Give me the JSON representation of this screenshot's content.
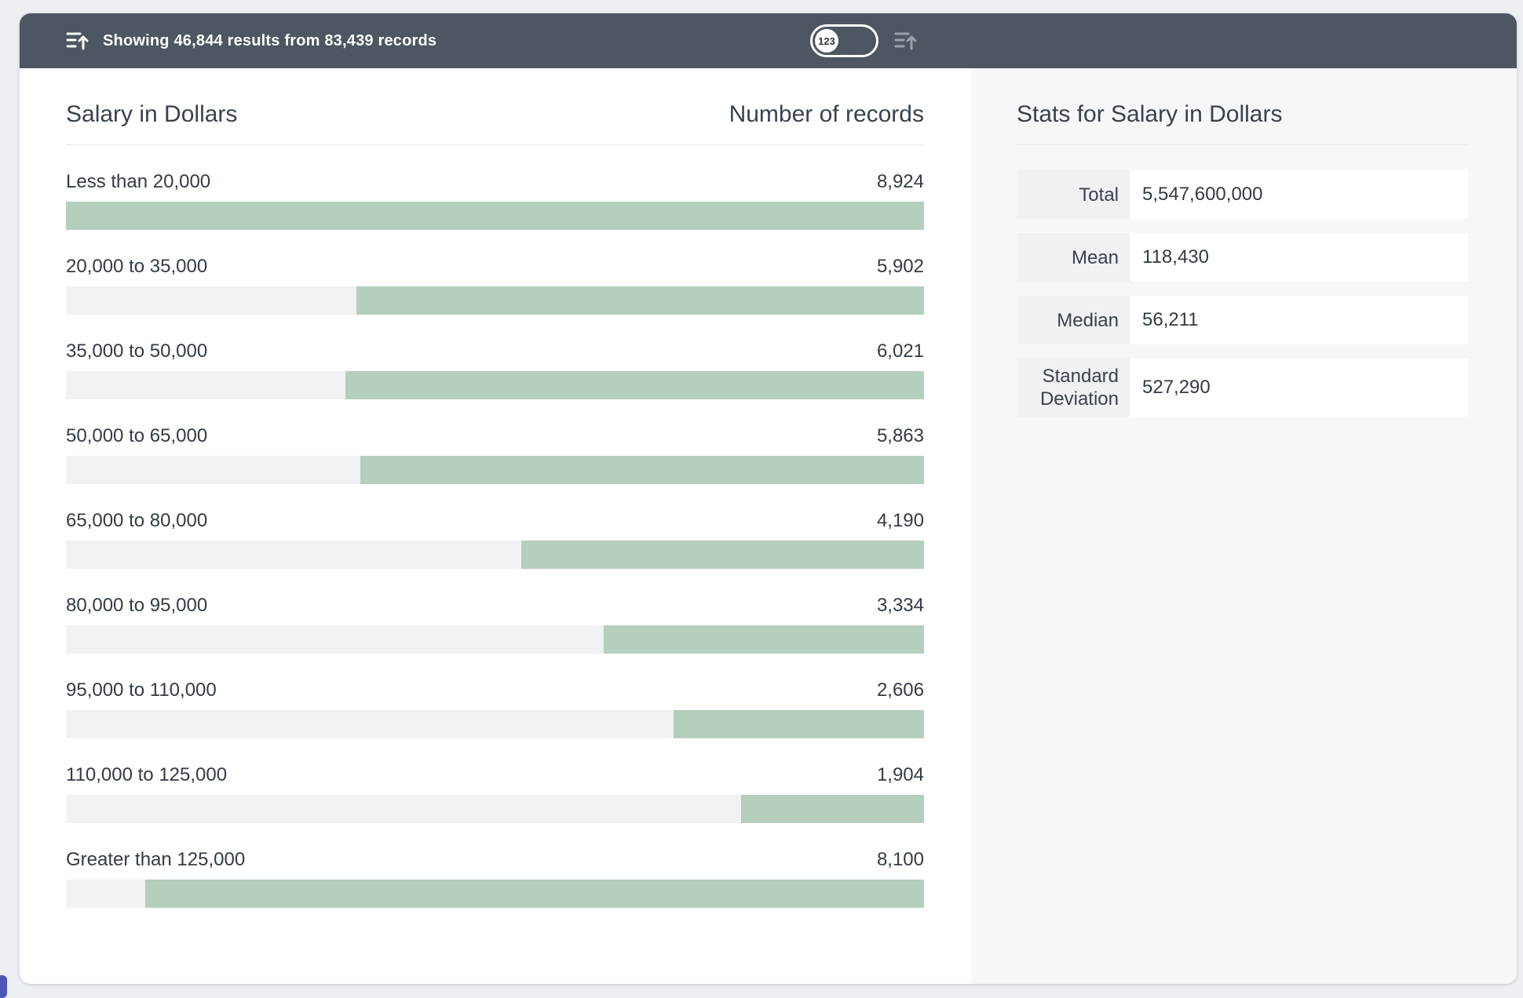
{
  "header_bar": {
    "status_text": "Showing 46,844 results from 83,439 records",
    "toggle_label": "123"
  },
  "chart": {
    "title": "Salary in Dollars",
    "value_header": "Number of records",
    "max": 8924,
    "rows": [
      {
        "label": "Less than 20,000",
        "value": "8,924",
        "count": 8924
      },
      {
        "label": "20,000 to 35,000",
        "value": "5,902",
        "count": 5902
      },
      {
        "label": "35,000 to 50,000",
        "value": "6,021",
        "count": 6021
      },
      {
        "label": "50,000 to 65,000",
        "value": "5,863",
        "count": 5863
      },
      {
        "label": "65,000 to 80,000",
        "value": "4,190",
        "count": 4190
      },
      {
        "label": "80,000 to 95,000",
        "value": "3,334",
        "count": 3334
      },
      {
        "label": "95,000 to 110,000",
        "value": "2,606",
        "count": 2606
      },
      {
        "label": "110,000 to 125,000",
        "value": "1,904",
        "count": 1904
      },
      {
        "label": "Greater than 125,000",
        "value": "8,100",
        "count": 8100
      }
    ]
  },
  "stats": {
    "title": "Stats for Salary in Dollars",
    "rows": [
      {
        "label": "Total",
        "value": "5,547,600,000"
      },
      {
        "label": "Mean",
        "value": "118,430"
      },
      {
        "label": "Median",
        "value": "56,211"
      },
      {
        "label": "Standard Deviation",
        "value": "527,290"
      }
    ]
  },
  "chart_data": {
    "type": "bar",
    "orientation": "horizontal",
    "title": "Salary in Dollars",
    "xlabel": "Number of records",
    "categories": [
      "Less than 20,000",
      "20,000 to 35,000",
      "35,000 to 50,000",
      "50,000 to 65,000",
      "65,000 to 80,000",
      "80,000 to 95,000",
      "95,000 to 110,000",
      "110,000 to 125,000",
      "Greater than 125,000"
    ],
    "values": [
      8924,
      5902,
      6021,
      5863,
      4190,
      3334,
      2606,
      1904,
      8100
    ],
    "max_value": 8924,
    "bars_right_aligned": true,
    "stats": {
      "total": 5547600000,
      "mean": 118430,
      "median": 56211,
      "standard_deviation": 527290
    }
  },
  "colors": {
    "header_bg": "#4d5661",
    "bar_fill": "#b4cfbd",
    "bar_track": "#f1f2f3",
    "panel_bg": "#f6f7f8",
    "stat_label_bg": "#f0f1f3",
    "page_bg": "#edeff3",
    "accent_corner": "#4c56b8",
    "text_dark": "#333b44"
  }
}
